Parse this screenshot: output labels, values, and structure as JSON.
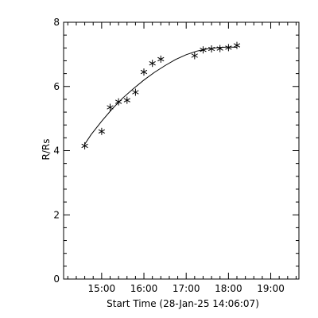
{
  "chart_data": {
    "type": "scatter",
    "title": "",
    "xlabel": "Start Time (28-Jan-25 14:06:07)",
    "ylabel": "R/Rs",
    "xlim": [
      "14:06",
      "19:40"
    ],
    "ylim": [
      0,
      8
    ],
    "x_ticks": [
      "15:00",
      "16:00",
      "17:00",
      "18:00",
      "19:00"
    ],
    "y_ticks": [
      0,
      2,
      4,
      6,
      8
    ],
    "grid": false,
    "legend": "none",
    "colors": {
      "line": "#000000",
      "marker": "#000000",
      "background": "#ffffff"
    },
    "series": [
      {
        "marker": "asterisk",
        "x": [
          "14:36",
          "15:00",
          "15:12",
          "15:24",
          "15:36",
          "15:48",
          "16:00",
          "16:12",
          "16:24",
          "17:12",
          "17:24",
          "17:36",
          "17:48",
          "18:00",
          "18:12"
        ],
        "y": [
          4.15,
          4.6,
          5.35,
          5.52,
          5.57,
          5.82,
          6.45,
          6.72,
          6.85,
          6.96,
          7.14,
          7.17,
          7.18,
          7.21,
          7.28
        ]
      },
      {
        "style": "line",
        "fit": "quadratic",
        "x": [
          "14:36",
          "14:45",
          "15:00",
          "15:15",
          "15:30",
          "15:45",
          "16:00",
          "16:15",
          "16:30",
          "16:45",
          "17:00",
          "17:15",
          "17:30",
          "17:45",
          "18:00",
          "18:12"
        ],
        "y": [
          4.2,
          4.5,
          4.92,
          5.3,
          5.64,
          5.93,
          6.2,
          6.44,
          6.65,
          6.84,
          6.99,
          7.1,
          7.17,
          7.21,
          7.23,
          7.22
        ]
      }
    ]
  }
}
